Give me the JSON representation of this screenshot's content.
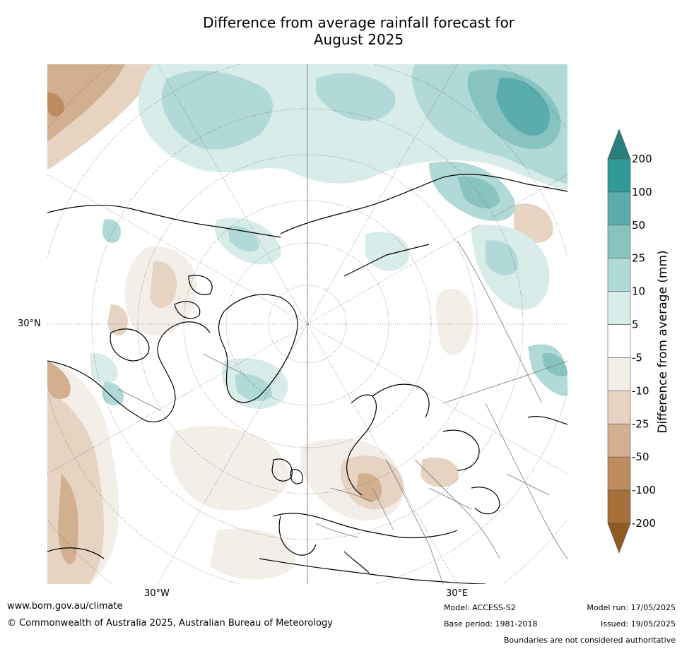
{
  "title": "Difference from average rainfall forecast for\nAugust 2025",
  "title_line1": "Difference from average rainfall forecast for",
  "title_line2": "August 2025",
  "lat_label": "30°N",
  "lon_labels": [
    "30°W",
    "30°E"
  ],
  "colorbar": {
    "label": "Difference from average (mm)",
    "ticks": [
      "200",
      "100",
      "50",
      "25",
      "10",
      "5",
      "-5",
      "-10",
      "-25",
      "-50",
      "-100",
      "-200"
    ],
    "colors_top_to_bottom": [
      "#2a7f7c",
      "#2f9a97",
      "#5aadab",
      "#86c3c1",
      "#b0d9d7",
      "#d8ecea",
      "#ffffff",
      "#f3eee8",
      "#e6d3c1",
      "#d2b08f",
      "#bd8d60",
      "#a86f3a",
      "#8f5a24"
    ]
  },
  "footer": {
    "url": "www.bom.gov.au/climate",
    "copyright": "© Commonwealth of Australia 2025, Australian Bureau of Meteorology",
    "model": "Model: ACCESS-S2",
    "base_period": "Base period: 1981-2018",
    "model_run": "Model run: 17/05/2025",
    "issued": "Issued: 19/05/2025",
    "disclaimer": "Boundaries are not considered authoritative"
  }
}
